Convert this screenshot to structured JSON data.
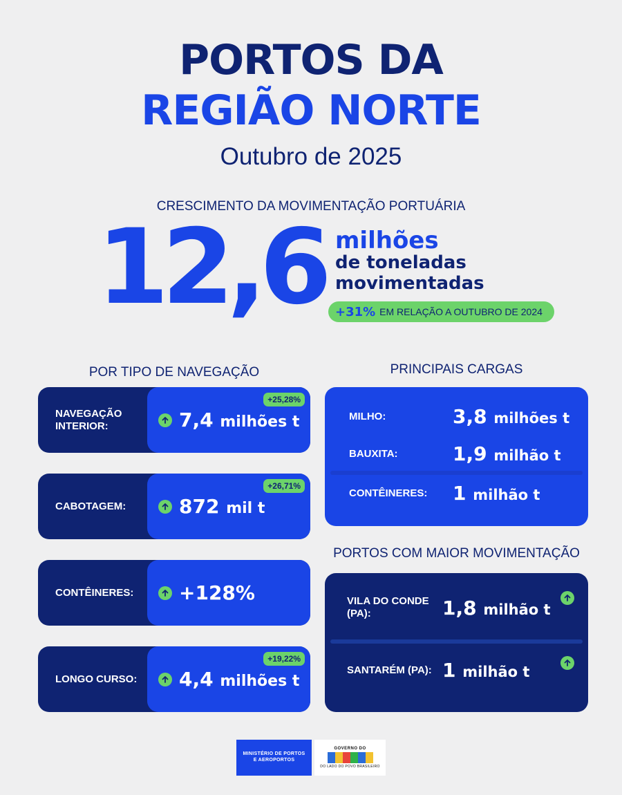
{
  "header": {
    "title_line1": "PORTOS DA",
    "title_line2": "REGIÃO NORTE",
    "subtitle": "Outubro de 2025"
  },
  "growth": {
    "label": "CRESCIMENTO DA MOVIMENTAÇÃO PORTUÁRIA",
    "number": "12,6",
    "unit_line1": "milhões",
    "unit_line2": "de toneladas",
    "unit_line3": "movimentadas",
    "pct": "+31%",
    "relation": "EM RELAÇÃO A OUTUBRO DE 2024"
  },
  "navigation": {
    "title": "POR TIPO DE NAVEGAÇÃO",
    "items": [
      {
        "label": "NAVEGAÇÃO INTERIOR:",
        "value": "7,4",
        "unit": "milhões t",
        "badge": "+25,28%"
      },
      {
        "label": "CABOTAGEM:",
        "value": "872",
        "unit": "mil t",
        "badge": "+26,71%"
      },
      {
        "label": "CONTÊINERES:",
        "value": "+128%",
        "unit": "",
        "badge": ""
      },
      {
        "label": "LONGO CURSO:",
        "value": "4,4",
        "unit": "milhões t",
        "badge": "+19,22%"
      }
    ]
  },
  "cargos": {
    "title": "PRINCIPAIS CARGAS",
    "items": [
      {
        "label": "MILHO:",
        "value": "3,8",
        "unit": "milhões t"
      },
      {
        "label": "BAUXITA:",
        "value": "1,9",
        "unit": "milhão t"
      },
      {
        "label": "CONTÊINERES:",
        "value": "1",
        "unit": "milhão t"
      }
    ]
  },
  "ports": {
    "title": "PORTOS COM MAIOR MOVIMENTAÇÃO",
    "items": [
      {
        "label": "VILA DO CONDE (PA):",
        "value": "1,8",
        "unit": "milhão t"
      },
      {
        "label": "SANTARÉM (PA):",
        "value": "1",
        "unit": "milhão t"
      }
    ]
  },
  "footer": {
    "ministry": "MINISTÉRIO DE PORTOS E AEROPORTOS",
    "gov_top": "GOVERNO DO",
    "gov_name": "BRASIL",
    "gov_bottom": "DO LADO DO POVO BRASILEIRO"
  },
  "colors": {
    "navy": "#0f2372",
    "blue": "#1a45e6",
    "green": "#6cd36a",
    "background": "#efeff0"
  },
  "icons": [
    "arrow-up-circle-icon"
  ]
}
